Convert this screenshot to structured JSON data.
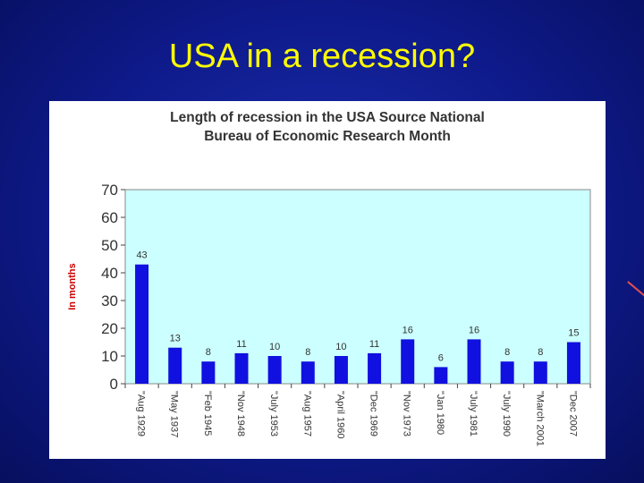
{
  "slide": {
    "title": "USA in a recession?"
  },
  "colors": {
    "bar": "#1010e0",
    "plot_bg": "#ccffff",
    "ylabel": "#cc0000",
    "text": "#333333"
  },
  "chart_data": {
    "type": "bar",
    "title": "Length of recession in the USA Source National Bureau of Economic Research Month",
    "title_lines": [
      "Length of recession in the USA Source National",
      "Bureau of Economic Research Month"
    ],
    "xlabel": "",
    "ylabel": "In months",
    "ylim": [
      0,
      70
    ],
    "yticks": [
      0,
      10,
      20,
      30,
      40,
      50,
      60,
      70
    ],
    "grid": false,
    "categories": [
      "\"Aug 1929",
      "\"May 1937",
      "\"Feb 1945",
      "\"Nov 1948",
      "\"July 1953",
      "\"Aug 1957",
      "\"April 1960",
      "\"Dec 1969",
      "\"Nov 1973",
      "\"Jan 1980",
      "\"July 1981",
      "\"July 1990",
      "\"March 2001",
      "\"Dec 2007"
    ],
    "values": [
      43,
      13,
      8,
      11,
      10,
      8,
      10,
      11,
      16,
      6,
      16,
      8,
      8,
      15
    ]
  }
}
